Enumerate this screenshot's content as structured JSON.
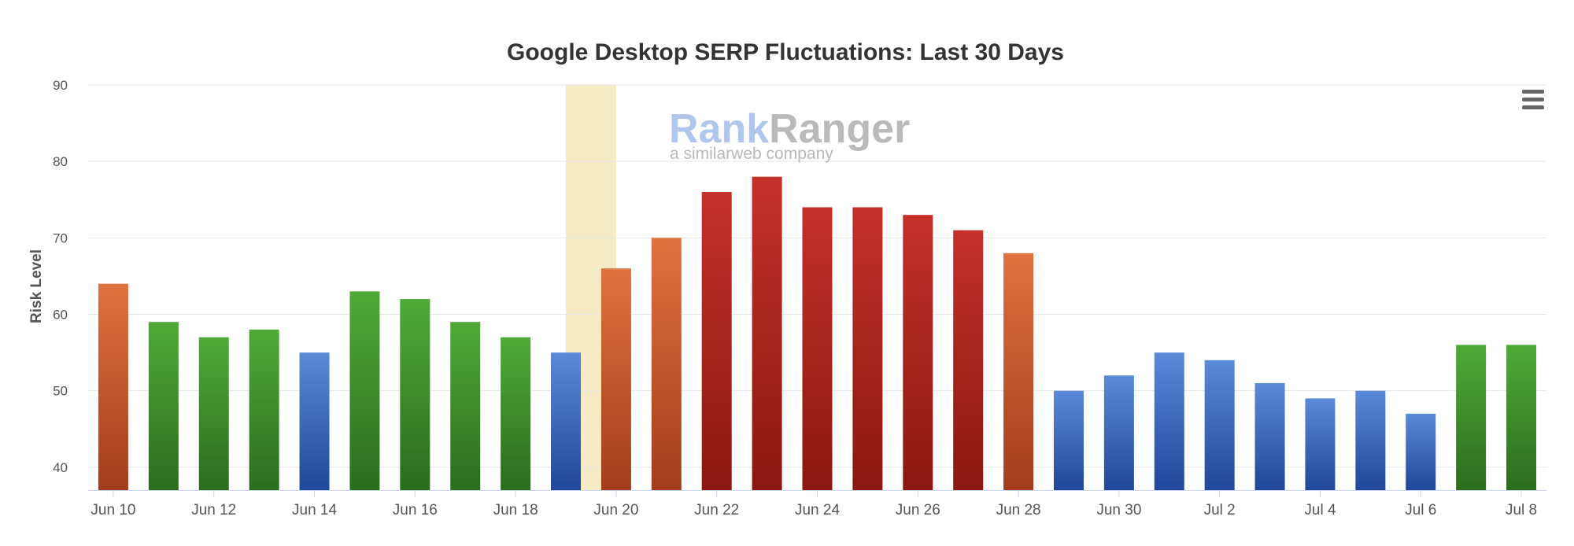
{
  "chart_data": {
    "type": "bar",
    "title": "Google Desktop SERP Fluctuations: Last 30 Days",
    "ylabel": "Risk Level",
    "xlabel": "",
    "ylim": [
      37,
      90
    ],
    "yticks": [
      40,
      50,
      60,
      70,
      80,
      90
    ],
    "grid": true,
    "legend": "none",
    "categories": [
      "Jun 10",
      "Jun 11",
      "Jun 12",
      "Jun 13",
      "Jun 14",
      "Jun 15",
      "Jun 16",
      "Jun 17",
      "Jun 18",
      "Jun 19",
      "Jun 20",
      "Jun 21",
      "Jun 22",
      "Jun 23",
      "Jun 24",
      "Jun 25",
      "Jun 26",
      "Jun 27",
      "Jun 28",
      "Jun 29",
      "Jun 30",
      "Jul 1",
      "Jul 2",
      "Jul 3",
      "Jul 4",
      "Jul 5",
      "Jul 6",
      "Jul 7",
      "Jul 8"
    ],
    "xtick_labels": [
      "Jun 10",
      "",
      "Jun 12",
      "",
      "Jun 14",
      "",
      "Jun 16",
      "",
      "Jun 18",
      "",
      "Jun 20",
      "",
      "Jun 22",
      "",
      "Jun 24",
      "",
      "Jun 26",
      "",
      "Jun 28",
      "",
      "Jun 30",
      "",
      "Jul 2",
      "",
      "Jul 4",
      "",
      "Jul 6",
      "",
      "Jul 8"
    ],
    "values": [
      64,
      59,
      57,
      58,
      55,
      63,
      62,
      59,
      57,
      55,
      66,
      70,
      76,
      78,
      74,
      74,
      73,
      71,
      68,
      50,
      52,
      55,
      54,
      51,
      49,
      50,
      47,
      56,
      56
    ],
    "bar_levels": [
      "orange",
      "green",
      "green",
      "green",
      "blue",
      "green",
      "green",
      "green",
      "green",
      "blue",
      "orange",
      "orange",
      "red",
      "red",
      "red",
      "red",
      "red",
      "red",
      "orange",
      "blue",
      "blue",
      "blue",
      "blue",
      "blue",
      "blue",
      "blue",
      "blue",
      "green",
      "green"
    ],
    "highlight_band": {
      "from": "Jun 19",
      "to": "Jun 20",
      "color": "#f5ecc5"
    }
  },
  "colors": {
    "green": {
      "top": "#4faa38",
      "bottom": "#2b6c1d"
    },
    "blue": {
      "top": "#5a8ad8",
      "bottom": "#20479a"
    },
    "orange": {
      "top": "#de7240",
      "bottom": "#a33c1c"
    },
    "red": {
      "top": "#c4302a",
      "bottom": "#8a1812"
    },
    "grid": "#e6e6e6",
    "axis": "#ccd6eb"
  },
  "watermark": {
    "brand": "RankRanger",
    "brand_part1": "Rank",
    "brand_part2": "Ranger",
    "tagline": "a similarweb company"
  },
  "menu": {
    "icon": "hamburger-menu-icon"
  }
}
